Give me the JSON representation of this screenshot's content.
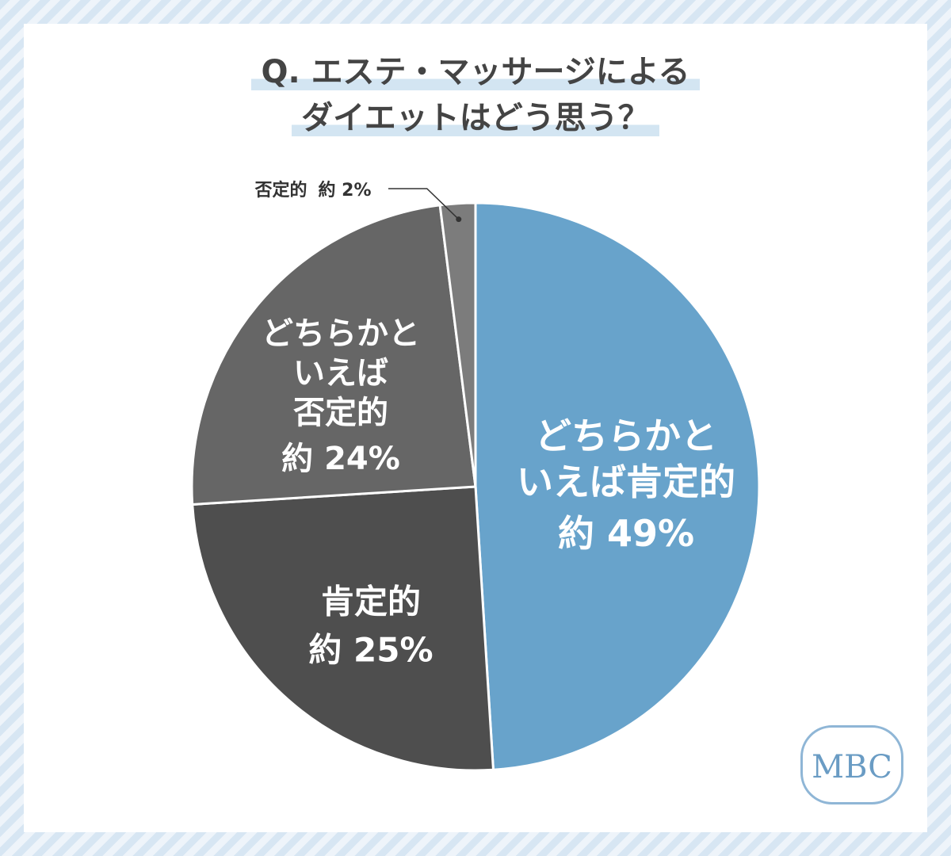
{
  "chart_data": {
    "type": "pie",
    "title": "Q. エステ・マッサージによる\nダイエットはどう思う？",
    "categories": [
      "どちらかと\nいえば肯定的",
      "肯定的",
      "どちらかと\nいえば\n否定的",
      "否定的"
    ],
    "values": [
      49,
      25,
      24,
      2
    ],
    "value_labels": [
      "約 49%",
      "約 25%",
      "約 24%",
      "約 2%"
    ],
    "colors": [
      "#68a3cb",
      "#4e4e4e",
      "#666666",
      "#7c7c7c"
    ],
    "logo": "MBC"
  }
}
